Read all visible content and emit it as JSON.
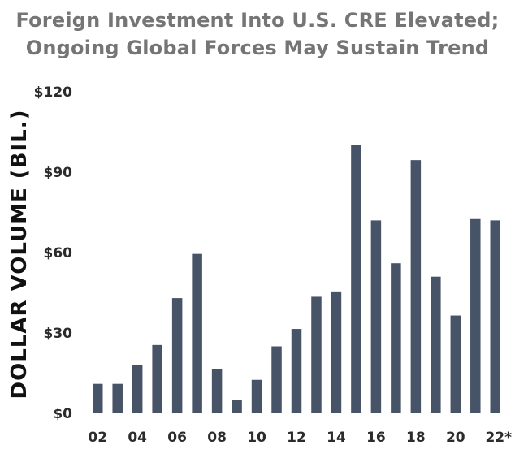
{
  "chart_data": {
    "type": "bar",
    "title_lines": [
      "Foreign Investment Into U.S. CRE Elevated;",
      "Ongoing Global Forces May Sustain Trend"
    ],
    "ylabel": "DOLLAR VOLUME (BIL.)",
    "xlabel": "",
    "ylim": [
      0,
      120
    ],
    "yticks": [
      0,
      30,
      60,
      90,
      120
    ],
    "ytick_labels": [
      "$0",
      "$30",
      "$60",
      "$90",
      "$120"
    ],
    "categories": [
      "02",
      "03",
      "04",
      "05",
      "06",
      "07",
      "08",
      "09",
      "10",
      "11",
      "12",
      "13",
      "14",
      "15",
      "16",
      "17",
      "18",
      "19",
      "20",
      "21",
      "22*"
    ],
    "x_tick_labels": [
      "02",
      "",
      "04",
      "",
      "06",
      "",
      "08",
      "",
      "10",
      "",
      "12",
      "",
      "14",
      "",
      "16",
      "",
      "18",
      "",
      "20",
      "",
      "22*"
    ],
    "values": [
      11,
      11,
      18,
      25.5,
      43,
      59.5,
      16.5,
      5,
      12.5,
      25,
      31.5,
      43.5,
      45.5,
      100,
      72,
      56,
      94.5,
      51,
      36.5,
      72.5,
      72
    ],
    "grid": false,
    "bar_color": "#475366"
  }
}
